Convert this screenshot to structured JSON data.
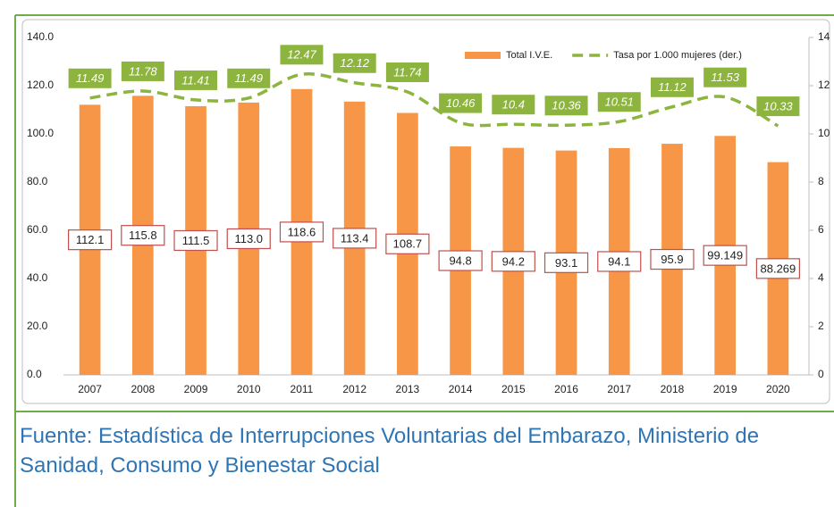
{
  "chart_data": {
    "type": "bar",
    "categories": [
      "2007",
      "2008",
      "2009",
      "2010",
      "2011",
      "2012",
      "2013",
      "2014",
      "2015",
      "2016",
      "2017",
      "2018",
      "2019",
      "2020"
    ],
    "series": [
      {
        "name": "Total I.V.E.",
        "type": "bar",
        "color": "#f79646",
        "values": [
          112.1,
          115.8,
          111.5,
          113.0,
          118.6,
          113.4,
          108.7,
          94.8,
          94.2,
          93.1,
          94.1,
          95.9,
          99.149,
          88.269
        ],
        "value_labels": [
          "112.1",
          "115.8",
          "111.5",
          "113.0",
          "118.6",
          "113.4",
          "108.7",
          "94.8",
          "94.2",
          "93.1",
          "94.1",
          "95.9",
          "99.149",
          "88.269"
        ]
      },
      {
        "name": "Tasa por 1.000 mujeres (der.)",
        "type": "line",
        "axis": "y2",
        "color": "#8db43e",
        "values": [
          11.49,
          11.78,
          11.41,
          11.49,
          12.47,
          12.12,
          11.74,
          10.46,
          10.4,
          10.36,
          10.51,
          11.12,
          11.53,
          10.33
        ]
      }
    ],
    "ylim": [
      0,
      140
    ],
    "yticks": [
      {
        "value": 0,
        "label": "0.0"
      },
      {
        "value": 20,
        "label": "20.0"
      },
      {
        "value": 40,
        "label": "40.0"
      },
      {
        "value": 60,
        "label": "60.0"
      },
      {
        "value": 80,
        "label": "80.0"
      },
      {
        "value": 100,
        "label": "100.0"
      },
      {
        "value": 120,
        "label": "120.0"
      },
      {
        "value": 140,
        "label": "140.0"
      }
    ],
    "y2lim": [
      0,
      14
    ],
    "y2ticks": [
      0,
      2,
      4,
      6,
      8,
      10,
      12,
      14
    ],
    "legend": "top-right"
  },
  "caption": "Fuente: Estadística de Interrupciones Voluntarias del Embarazo, Ministerio de Sanidad, Consumo y Bienestar Social"
}
